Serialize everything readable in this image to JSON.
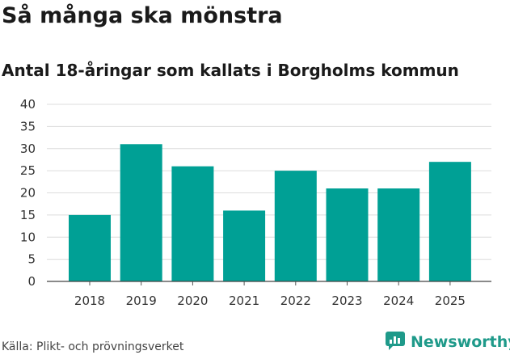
{
  "title": "Så många ska mönstra",
  "subtitle": "Antal 18-åringar som kallats i Borgholms kommun",
  "source": "Källa: Plikt- och prövningsverket",
  "brand": "Newsworthy",
  "colors": {
    "bar": "#00a095",
    "grid": "#dcdcdc",
    "brand": "#1f9a8a"
  },
  "chart_data": {
    "type": "bar",
    "categories": [
      "2018",
      "2019",
      "2020",
      "2021",
      "2022",
      "2023",
      "2024",
      "2025"
    ],
    "values": [
      15,
      31,
      26,
      16,
      25,
      21,
      21,
      27
    ],
    "ylim": [
      0,
      40
    ],
    "yticks": [
      "0",
      "5",
      "10",
      "15",
      "20",
      "25",
      "30",
      "35",
      "40"
    ],
    "grid": true,
    "xlabel": "",
    "ylabel": ""
  }
}
